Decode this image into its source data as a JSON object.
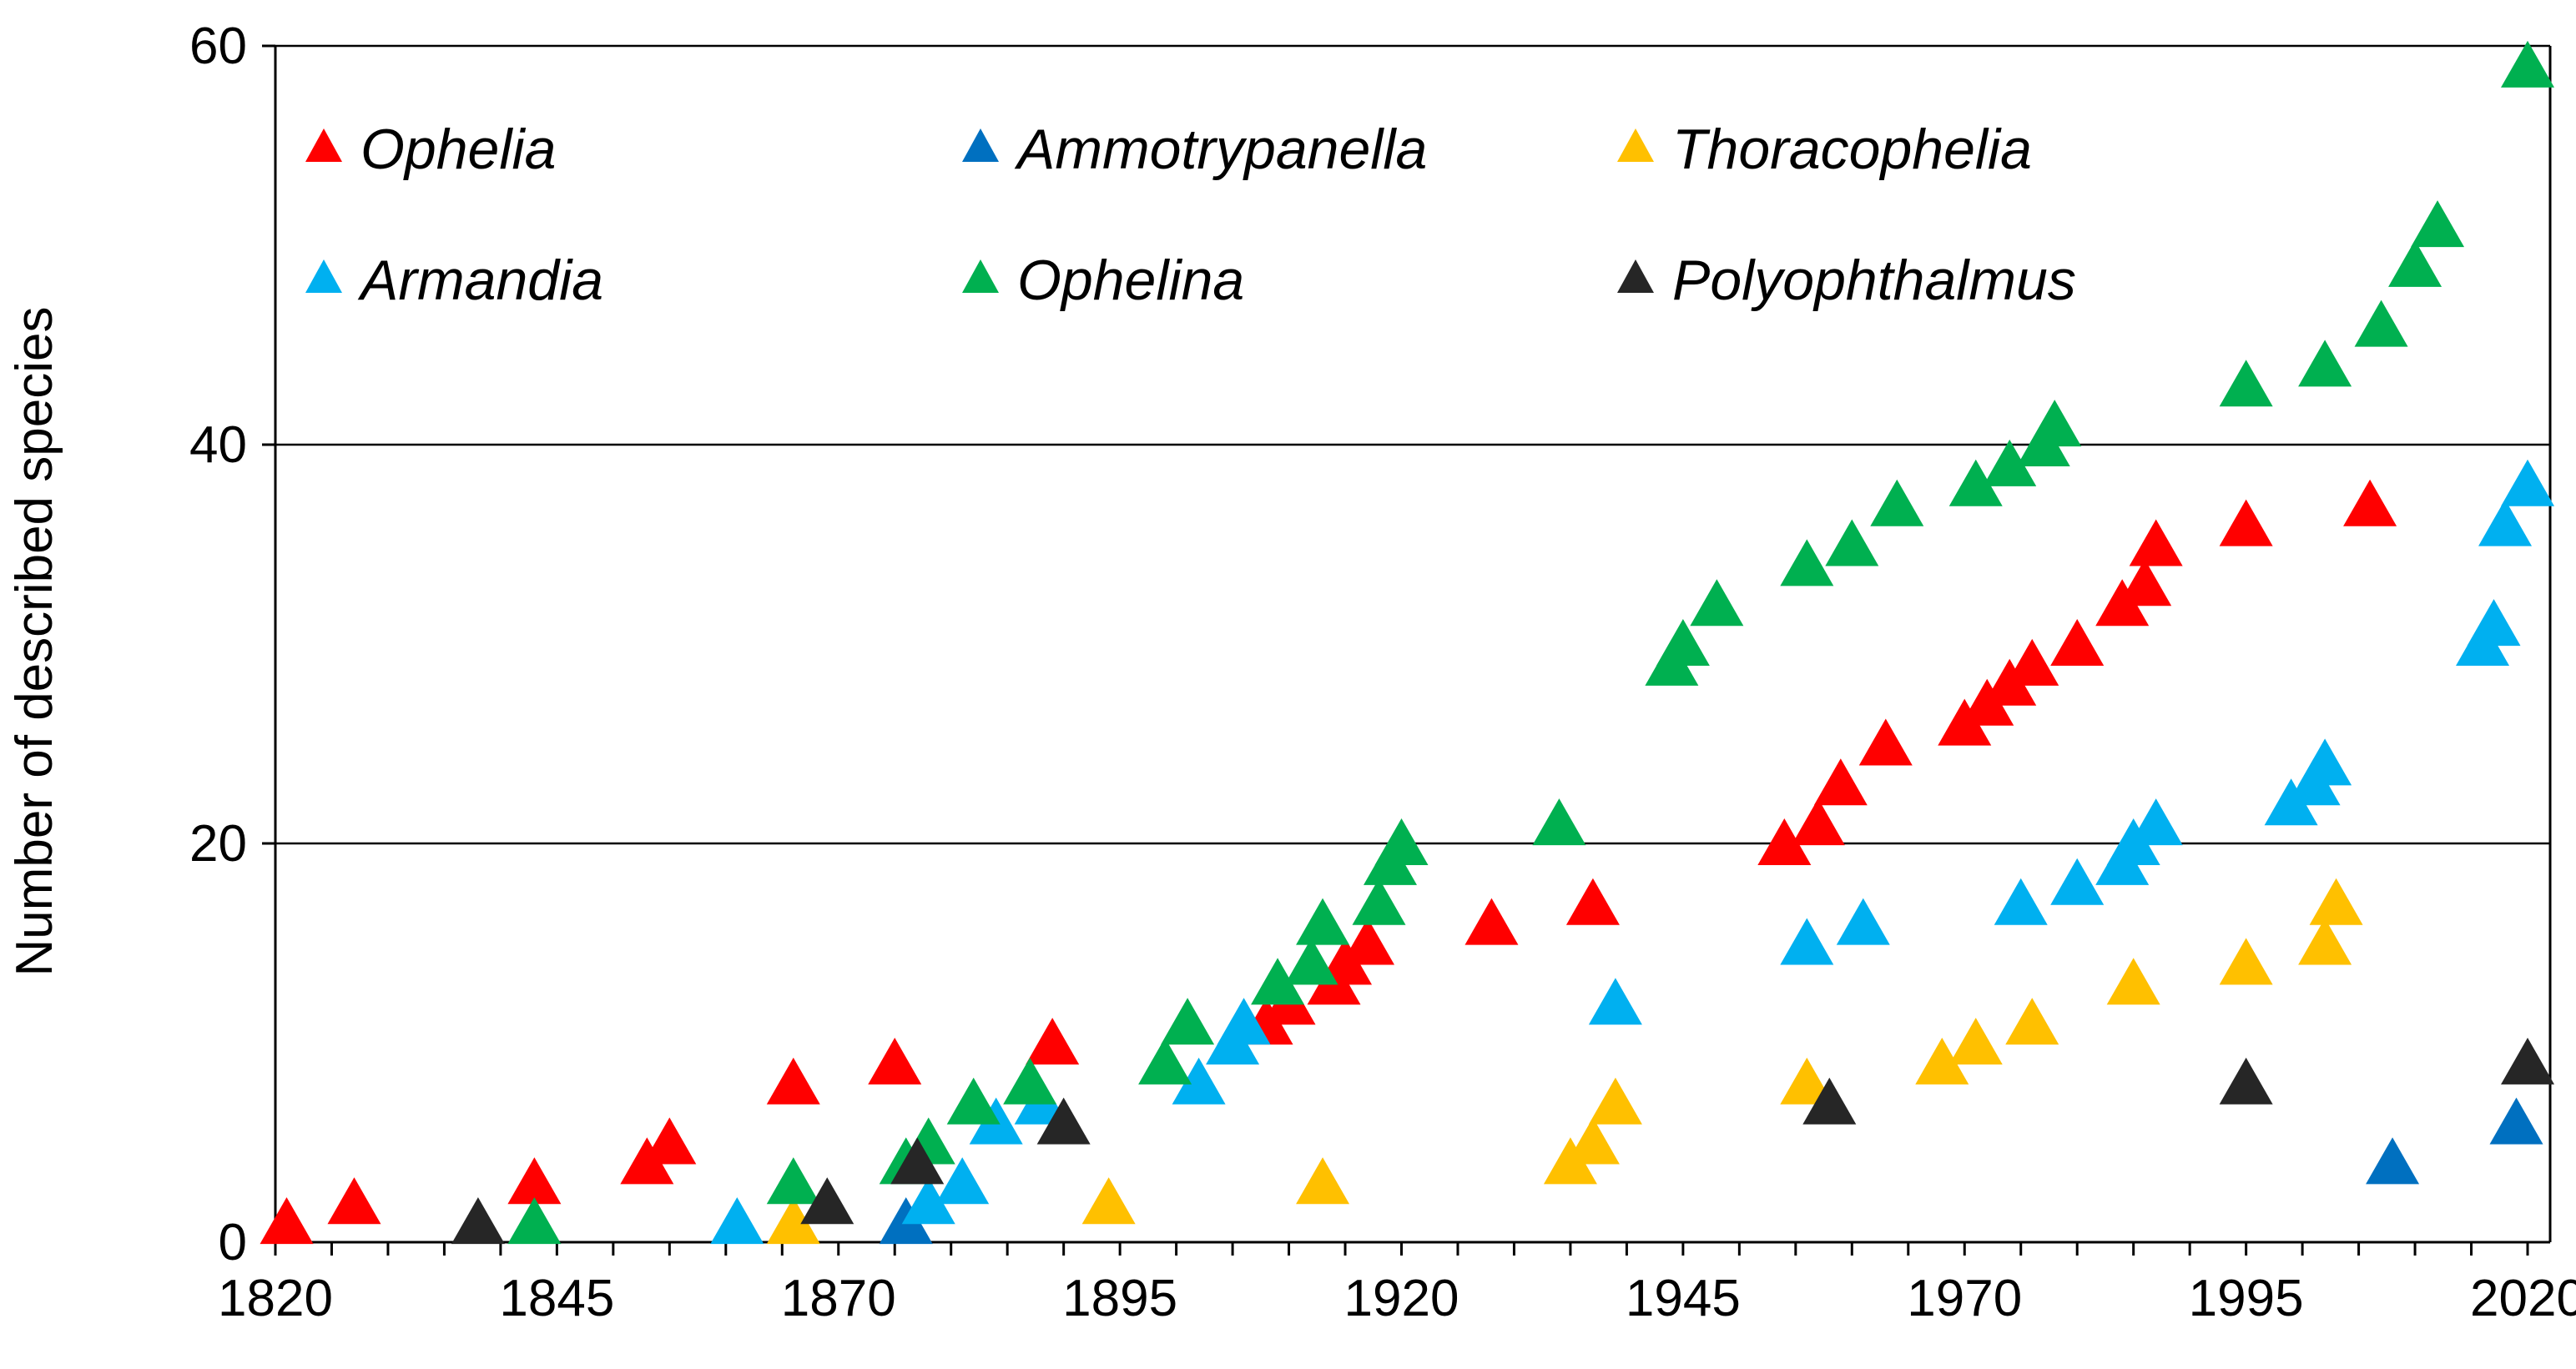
{
  "chart_data": {
    "type": "scatter",
    "title": "",
    "xlabel": "",
    "ylabel": "Number of described species",
    "xlim": [
      1820,
      2022
    ],
    "ylim": [
      0,
      60
    ],
    "xticks": [
      1820,
      1845,
      1870,
      1895,
      1920,
      1945,
      1970,
      1995,
      2020
    ],
    "yticks": [
      0,
      20,
      40,
      60
    ],
    "grid": "horizontal",
    "marker": "triangle",
    "legend_position": "top-left",
    "series": [
      {
        "name": "Ophelia",
        "color": "#ff0000",
        "points": [
          [
            1821,
            1
          ],
          [
            1827,
            2
          ],
          [
            1843,
            3
          ],
          [
            1853,
            4
          ],
          [
            1855,
            5
          ],
          [
            1866,
            8
          ],
          [
            1875,
            9
          ],
          [
            1889,
            10
          ],
          [
            1908,
            11
          ],
          [
            1910,
            12
          ],
          [
            1914,
            13
          ],
          [
            1915,
            14
          ],
          [
            1917,
            15
          ],
          [
            1928,
            16
          ],
          [
            1937,
            17
          ],
          [
            1954,
            20
          ],
          [
            1957,
            21
          ],
          [
            1959,
            23
          ],
          [
            1963,
            25
          ],
          [
            1970,
            26
          ],
          [
            1972,
            27
          ],
          [
            1974,
            28
          ],
          [
            1976,
            29
          ],
          [
            1980,
            30
          ],
          [
            1984,
            32
          ],
          [
            1986,
            33
          ],
          [
            1987,
            35
          ],
          [
            1995,
            36
          ],
          [
            2006,
            37
          ]
        ]
      },
      {
        "name": "Ammotrypanella",
        "color": "#0070c0",
        "points": [
          [
            1876,
            1
          ],
          [
            2008,
            4
          ],
          [
            2019,
            6
          ]
        ]
      },
      {
        "name": "Thoracophelia",
        "color": "#ffc000",
        "points": [
          [
            1866,
            1
          ],
          [
            1894,
            2
          ],
          [
            1913,
            3
          ],
          [
            1935,
            4
          ],
          [
            1937,
            5
          ],
          [
            1939,
            7
          ],
          [
            1956,
            8
          ],
          [
            1968,
            9
          ],
          [
            1971,
            10
          ],
          [
            1976,
            11
          ],
          [
            1985,
            13
          ],
          [
            1995,
            14
          ],
          [
            2002,
            15
          ],
          [
            2003,
            17
          ]
        ]
      },
      {
        "name": "Armandia",
        "color": "#00b0f0",
        "points": [
          [
            1861,
            1
          ],
          [
            1878,
            2
          ],
          [
            1881,
            3
          ],
          [
            1884,
            6
          ],
          [
            1888,
            7
          ],
          [
            1902,
            8
          ],
          [
            1905,
            10
          ],
          [
            1906,
            11
          ],
          [
            1956,
            15
          ],
          [
            1961,
            16
          ],
          [
            1939,
            12
          ],
          [
            1975,
            17
          ],
          [
            1980,
            18
          ],
          [
            1984,
            19
          ],
          [
            1985,
            20
          ],
          [
            1987,
            21
          ],
          [
            1999,
            22
          ],
          [
            2001,
            23
          ],
          [
            2002,
            24
          ],
          [
            2016,
            30
          ],
          [
            2017,
            31
          ],
          [
            2018,
            36
          ],
          [
            2020,
            38
          ]
        ]
      },
      {
        "name": "Ophelina",
        "color": "#00b050",
        "points": [
          [
            1843,
            1
          ],
          [
            1866,
            3
          ],
          [
            1876,
            4
          ],
          [
            1878,
            5
          ],
          [
            1882,
            7
          ],
          [
            1887,
            8
          ],
          [
            1899,
            9
          ],
          [
            1901,
            11
          ],
          [
            1909,
            13
          ],
          [
            1912,
            14
          ],
          [
            1913,
            16
          ],
          [
            1918,
            17
          ],
          [
            1919,
            19
          ],
          [
            1920,
            20
          ],
          [
            1934,
            21
          ],
          [
            1944,
            29
          ],
          [
            1945,
            30
          ],
          [
            1948,
            32
          ],
          [
            1956,
            34
          ],
          [
            1960,
            35
          ],
          [
            1964,
            37
          ],
          [
            1971,
            38
          ],
          [
            1974,
            39
          ],
          [
            1977,
            40
          ],
          [
            1978,
            41
          ],
          [
            1995,
            43
          ],
          [
            2002,
            44
          ],
          [
            2007,
            46
          ],
          [
            2010,
            49
          ],
          [
            2012,
            51
          ],
          [
            2020,
            59
          ]
        ]
      },
      {
        "name": "Polyophthalmus",
        "color": "#262626",
        "points": [
          [
            1838,
            1
          ],
          [
            1869,
            2
          ],
          [
            1877,
            4
          ],
          [
            1890,
            6
          ],
          [
            1958,
            7
          ],
          [
            1995,
            8
          ],
          [
            2020,
            9
          ]
        ]
      }
    ]
  }
}
